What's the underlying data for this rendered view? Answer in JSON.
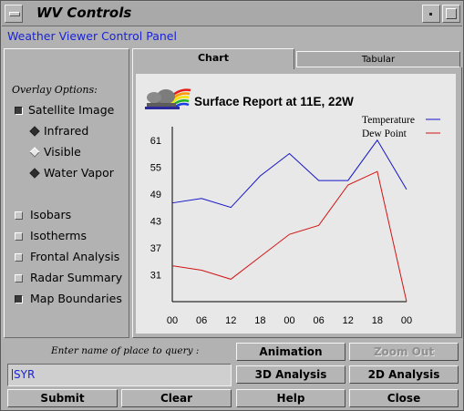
{
  "window": {
    "title": "WV Controls"
  },
  "subtitle": "Weather Viewer Control Panel",
  "overlay": {
    "heading": "Overlay Options:",
    "satellite": {
      "label": "Satellite Image",
      "checked": true
    },
    "radios": [
      {
        "label": "Infrared",
        "selected": true
      },
      {
        "label": "Visible",
        "selected": false
      },
      {
        "label": "Water Vapor",
        "selected": true
      }
    ],
    "checks": [
      {
        "label": "Isobars",
        "checked": false
      },
      {
        "label": "Isotherms",
        "checked": false
      },
      {
        "label": "Frontal Analysis",
        "checked": false
      },
      {
        "label": "Radar Summary",
        "checked": false
      },
      {
        "label": "Map Boundaries",
        "checked": true
      }
    ]
  },
  "tabs": {
    "chart": "Chart",
    "tabular": "Tabular"
  },
  "report_title": "Surface Report at 11E, 22W",
  "chart_data": {
    "type": "line",
    "title": "Surface Report at 11E, 22W",
    "categories": [
      "00",
      "06",
      "12",
      "18",
      "00",
      "06",
      "12",
      "18",
      "00"
    ],
    "y_ticks": [
      31,
      37,
      43,
      49,
      55,
      61
    ],
    "ylim": [
      25,
      64
    ],
    "legend_position": "top-right",
    "series": [
      {
        "name": "Temperature",
        "color": "#1414c8",
        "values": [
          47,
          48,
          46,
          53,
          58,
          52,
          52,
          61,
          50
        ]
      },
      {
        "name": "Dew Point",
        "color": "#d21414",
        "values": [
          33,
          32,
          30,
          35,
          40,
          42,
          51,
          54,
          25
        ]
      }
    ]
  },
  "query": {
    "label": "Enter name of place to query :",
    "value": "SYR"
  },
  "buttons": {
    "animation": "Animation",
    "zoom_out": "Zoom Out",
    "analysis_3d": "3D Analysis",
    "analysis_2d": "2D Analysis",
    "submit": "Submit",
    "clear": "Clear",
    "help": "Help",
    "close": "Close"
  }
}
